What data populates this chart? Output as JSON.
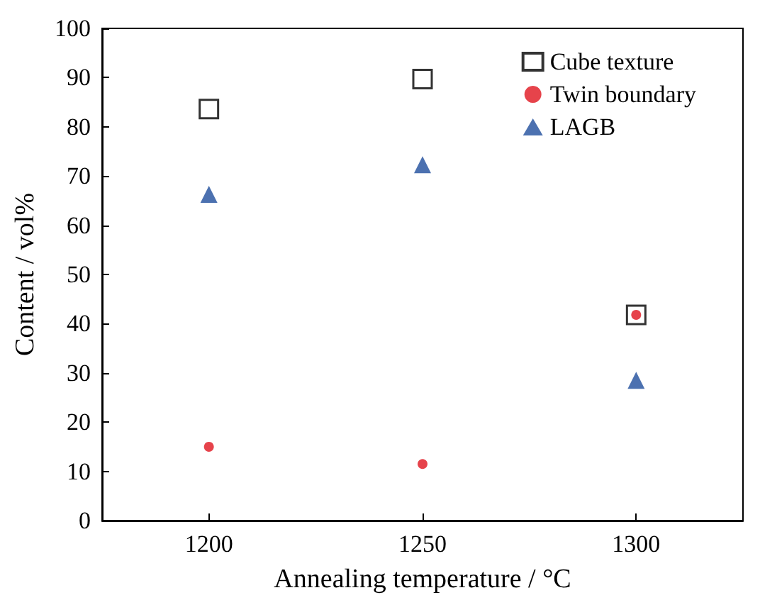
{
  "chart_data": {
    "type": "scatter",
    "xlabel": "Annealing temperature / °C",
    "ylabel": "Content / vol%",
    "x": [
      1200,
      1250,
      1300
    ],
    "series": [
      {
        "name": "Cube texture",
        "color": "#000000",
        "marker": "square",
        "values": [
          83.6,
          89.7,
          41.8
        ]
      },
      {
        "name": "Twin boundary",
        "color": "#e0141e",
        "marker": "circle",
        "values": [
          15.0,
          11.5,
          41.8
        ]
      },
      {
        "name": "LAGB",
        "color": "#1f4e9c",
        "marker": "triangle",
        "values": [
          66.3,
          72.3,
          28.5
        ]
      }
    ],
    "xlim": [
      1175,
      1325
    ],
    "xticks": [
      1200,
      1250,
      1300
    ],
    "ylim": [
      0,
      100
    ],
    "yticks": [
      0,
      10,
      20,
      30,
      40,
      50,
      60,
      70,
      80,
      90,
      100
    ],
    "grid": false,
    "legend": "top right"
  }
}
